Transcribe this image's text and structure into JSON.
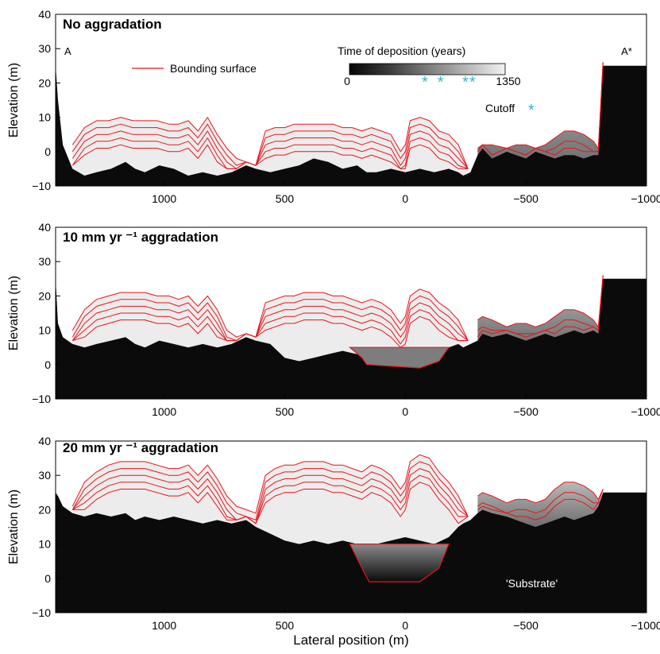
{
  "figure": {
    "xlabel": "Lateral position (m)",
    "ylabel": "Elevation (m)",
    "endpoint_left": "A",
    "endpoint_right": "A*",
    "legend_bounding_surface": "Bounding surface",
    "colorbar_title": "Time of deposition (years)",
    "colorbar_min": "0",
    "colorbar_max": "1350",
    "cutoff_label": "Cutoff",
    "cutoff_marker": "*",
    "substrate_label": "'Substrate'",
    "colors": {
      "bounding_surface": "#e8141c",
      "cutoff": "#33b5cc",
      "substrate": "#0b0b0b",
      "deposit_young": "#f1f1f1",
      "deposit_old": "#7a7a7a"
    }
  },
  "chart_data": [
    {
      "type": "area",
      "title": "No aggradation",
      "xlabel": "",
      "ylabel": "Elevation (m)",
      "xlim": [
        1450,
        -1000
      ],
      "ylim": [
        -10,
        40
      ],
      "x_reversed": true,
      "x_ticks": [
        1000,
        500,
        0,
        -500,
        -1000
      ],
      "x_tick_labels": [
        "1000",
        "500",
        "0",
        "−500",
        "−1000"
      ],
      "y_ticks": [
        -10,
        0,
        10,
        20,
        30,
        40
      ],
      "y_tick_labels": [
        "−10",
        "0",
        "10",
        "20",
        "30",
        "40"
      ],
      "aggradation_rate_mm_per_yr": 0,
      "substrate_surface": {
        "x": [
          1450,
          1440,
          1420,
          1380,
          1330,
          1280,
          1220,
          1160,
          1120,
          1080,
          1020,
          960,
          900,
          840,
          780,
          720,
          660,
          620,
          560,
          500,
          440,
          380,
          320,
          260,
          200,
          160,
          120,
          60,
          0,
          -60,
          -120,
          -180,
          -220,
          -240,
          -270,
          -300,
          -320,
          -360,
          -420,
          -460,
          -500,
          -540,
          -580,
          -620,
          -660,
          -700,
          -740,
          -780,
          -800,
          -820,
          -840,
          -1000
        ],
        "y": [
          25,
          15,
          2,
          -5,
          -7,
          -6,
          -5,
          -3,
          -5,
          -6,
          -4,
          -5,
          -7,
          -6,
          -7,
          -6,
          -4,
          -5,
          -6,
          -5,
          -4,
          -2,
          -3,
          -5,
          -4,
          -6,
          -6,
          -5,
          -6,
          -5,
          -6,
          -5,
          -6,
          -7,
          -6,
          -1,
          1,
          -2,
          0,
          -1,
          -2,
          0,
          -1,
          -2,
          -1,
          -1,
          -2,
          -1,
          -1,
          25,
          25,
          25
        ]
      },
      "deposit_top": {
        "x": [
          1380,
          1330,
          1280,
          1230,
          1180,
          1130,
          1080,
          1030,
          980,
          940,
          900,
          860,
          820,
          780,
          740,
          700,
          660,
          620,
          580,
          540,
          500,
          460,
          420,
          380,
          340,
          300,
          260,
          220,
          180,
          140,
          100,
          60,
          20,
          0,
          -20,
          -60,
          -100,
          -140,
          -180,
          -220,
          -260
        ],
        "y": [
          2,
          7,
          9,
          9,
          10,
          9,
          9,
          9,
          8,
          8,
          9,
          6,
          10,
          5,
          1,
          -2,
          -3,
          -5,
          6,
          7,
          7,
          8,
          8,
          8,
          8,
          8,
          7,
          7,
          6,
          7,
          6,
          5,
          0,
          2,
          9,
          10,
          9,
          6,
          5,
          2,
          -6
        ]
      },
      "deposit_top_right": {
        "x": [
          -300,
          -320,
          -360,
          -420,
          -460,
          -500,
          -540,
          -580,
          -620,
          -660,
          -700,
          -740,
          -780,
          -800,
          -820
        ],
        "y": [
          1,
          2,
          2,
          1,
          2,
          2,
          1,
          2,
          4,
          6,
          6,
          5,
          3,
          1,
          -1
        ]
      }
    },
    {
      "type": "area",
      "title": "10 mm yr ⁻¹ aggradation",
      "xlabel": "",
      "ylabel": "Elevation (m)",
      "xlim": [
        1450,
        -1000
      ],
      "ylim": [
        -10,
        40
      ],
      "x_reversed": true,
      "x_ticks": [
        1000,
        500,
        0,
        -500,
        -1000
      ],
      "x_tick_labels": [
        "1000",
        "500",
        "0",
        "−500",
        "−1000"
      ],
      "y_ticks": [
        -10,
        0,
        10,
        20,
        30,
        40
      ],
      "y_tick_labels": [
        "−10",
        "0",
        "10",
        "20",
        "30",
        "40"
      ],
      "aggradation_rate_mm_per_yr": 10,
      "substrate_surface": {
        "x": [
          1450,
          1440,
          1420,
          1380,
          1330,
          1280,
          1220,
          1160,
          1120,
          1080,
          1020,
          960,
          900,
          840,
          780,
          720,
          660,
          620,
          560,
          500,
          440,
          380,
          320,
          260,
          200,
          160,
          120,
          60,
          0,
          -60,
          -120,
          -180,
          -220,
          -240,
          -270,
          -300,
          -320,
          -360,
          -420,
          -460,
          -500,
          -540,
          -580,
          -620,
          -660,
          -700,
          -740,
          -780,
          -800,
          -820,
          -840,
          -1000
        ],
        "y": [
          25,
          12,
          8,
          6,
          5,
          6,
          7,
          8,
          6,
          5,
          7,
          6,
          5,
          6,
          5,
          6,
          8,
          7,
          6,
          2,
          1,
          2,
          3,
          4,
          3,
          2,
          3,
          5,
          4,
          5,
          4,
          5,
          6,
          5,
          6,
          7,
          9,
          8,
          9,
          8,
          7,
          8,
          9,
          8,
          9,
          10,
          9,
          10,
          9,
          25,
          25,
          25
        ]
      },
      "deposit_top": {
        "x": [
          1380,
          1330,
          1280,
          1230,
          1180,
          1130,
          1080,
          1030,
          980,
          940,
          900,
          860,
          820,
          780,
          740,
          700,
          660,
          620,
          580,
          540,
          500,
          460,
          420,
          380,
          340,
          300,
          260,
          220,
          180,
          140,
          100,
          60,
          20,
          0,
          -20,
          -60,
          -100,
          -140,
          -180,
          -220,
          -260
        ],
        "y": [
          10,
          16,
          19,
          20,
          21,
          21,
          21,
          20,
          20,
          19,
          20,
          17,
          20,
          16,
          10,
          8,
          7,
          6,
          18,
          19,
          20,
          20,
          21,
          21,
          21,
          20,
          20,
          19,
          18,
          19,
          18,
          16,
          12,
          14,
          20,
          22,
          21,
          18,
          16,
          13,
          6
        ]
      },
      "deposit_top_right": {
        "x": [
          -300,
          -320,
          -360,
          -420,
          -460,
          -500,
          -540,
          -580,
          -620,
          -660,
          -700,
          -740,
          -780,
          -800,
          -820
        ],
        "y": [
          13,
          14,
          13,
          11,
          12,
          12,
          11,
          12,
          14,
          16,
          16,
          15,
          13,
          11,
          9
        ]
      },
      "channel_base": {
        "x": [
          230,
          180,
          160,
          -60,
          -140,
          -180
        ],
        "y": [
          5,
          2,
          0,
          -1,
          1,
          5
        ]
      }
    },
    {
      "type": "area",
      "title": "20 mm yr ⁻¹ aggradation",
      "xlabel": "Lateral position (m)",
      "ylabel": "Elevation (m)",
      "xlim": [
        1450,
        -1000
      ],
      "ylim": [
        -10,
        40
      ],
      "x_reversed": true,
      "x_ticks": [
        1000,
        500,
        0,
        -500,
        -1000
      ],
      "x_tick_labels": [
        "1000",
        "500",
        "0",
        "−500",
        "−1000"
      ],
      "y_ticks": [
        -10,
        0,
        10,
        20,
        30,
        40
      ],
      "y_tick_labels": [
        "−10",
        "0",
        "10",
        "20",
        "30",
        "40"
      ],
      "aggradation_rate_mm_per_yr": 20,
      "substrate_surface": {
        "x": [
          1450,
          1440,
          1420,
          1380,
          1330,
          1280,
          1220,
          1160,
          1120,
          1080,
          1020,
          960,
          900,
          840,
          780,
          720,
          660,
          620,
          560,
          500,
          440,
          380,
          320,
          260,
          200,
          160,
          120,
          60,
          0,
          -60,
          -120,
          -180,
          -220,
          -240,
          -270,
          -300,
          -320,
          -360,
          -420,
          -460,
          -500,
          -540,
          -580,
          -620,
          -660,
          -700,
          -740,
          -780,
          -800,
          -820,
          -840,
          -1000
        ],
        "y": [
          25,
          24,
          21,
          19,
          18,
          19,
          18,
          19,
          17,
          18,
          17,
          18,
          17,
          16,
          17,
          16,
          17,
          15,
          13,
          11,
          10,
          11,
          10,
          11,
          10,
          9,
          10,
          11,
          12,
          11,
          10,
          12,
          15,
          16,
          17,
          19,
          20,
          19,
          18,
          17,
          16,
          15,
          16,
          17,
          18,
          17,
          18,
          19,
          21,
          25,
          25,
          25
        ]
      },
      "deposit_top": {
        "x": [
          1380,
          1330,
          1280,
          1230,
          1180,
          1130,
          1080,
          1030,
          980,
          940,
          900,
          860,
          820,
          780,
          740,
          700,
          660,
          620,
          580,
          540,
          500,
          460,
          420,
          380,
          340,
          300,
          260,
          220,
          180,
          140,
          100,
          60,
          20,
          0,
          -20,
          -60,
          -100,
          -140,
          -180,
          -220,
          -260
        ],
        "y": [
          21,
          28,
          31,
          33,
          34,
          34,
          34,
          33,
          32,
          32,
          33,
          30,
          33,
          29,
          24,
          21,
          20,
          19,
          30,
          32,
          33,
          33,
          34,
          34,
          34,
          33,
          33,
          32,
          31,
          33,
          32,
          30,
          26,
          28,
          34,
          36,
          35,
          31,
          28,
          24,
          16
        ]
      },
      "deposit_top_right": {
        "x": [
          -300,
          -320,
          -360,
          -420,
          -460,
          -500,
          -540,
          -580,
          -620,
          -660,
          -700,
          -740,
          -780,
          -800,
          -820
        ],
        "y": [
          24,
          25,
          24,
          22,
          23,
          23,
          22,
          23,
          26,
          28,
          28,
          27,
          25,
          23,
          21
        ]
      },
      "channel_base": {
        "x": [
          230,
          180,
          150,
          -60,
          -140,
          -180
        ],
        "y": [
          10,
          3,
          -1,
          -1,
          3,
          10
        ]
      }
    }
  ]
}
